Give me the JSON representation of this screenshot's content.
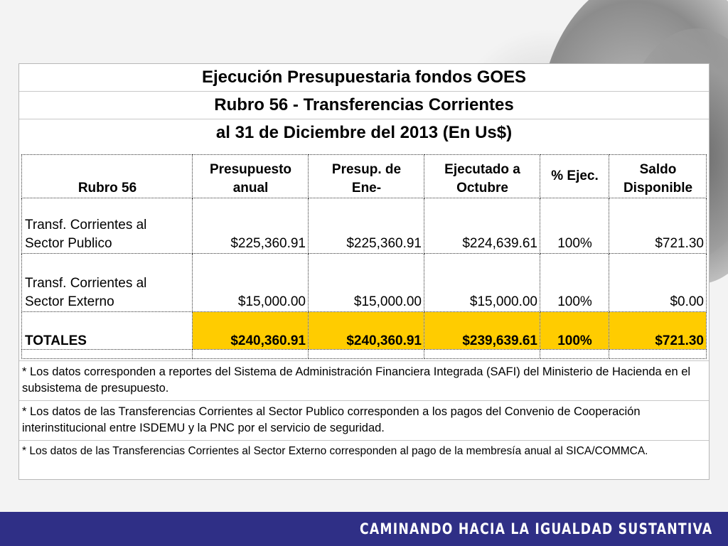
{
  "title": {
    "line1": "Ejecución Presupuestaria fondos GOES",
    "line2": "Rubro 56 - Transferencias Corrientes",
    "line3": "al 31 de Diciembre  del 2013 (En Us$)"
  },
  "table": {
    "headers": {
      "rubro": "Rubro 56",
      "presupuesto_l1": "Presupuesto",
      "presupuesto_l2": "anual",
      "presup_l1": "Presup. de",
      "presup_l2": "Ene-",
      "ejecutado_l1": "Ejecutado a",
      "ejecutado_l2": "Octubre",
      "pct": "% Ejec.",
      "saldo_l1": "Saldo",
      "saldo_l2": "Disponible"
    },
    "rows": [
      {
        "label_l1": "Transf. Corrientes al",
        "label_l2": "Sector Publico",
        "presupuesto": "$225,360.91",
        "presup": "$225,360.91",
        "ejecutado": "$224,639.61",
        "pct": "100%",
        "saldo": "$721.30"
      },
      {
        "label_l1": "Transf. Corrientes al",
        "label_l2": "Sector Externo",
        "presupuesto": "$15,000.00",
        "presup": "$15,000.00",
        "ejecutado": "$15,000.00",
        "pct": "100%",
        "saldo": "$0.00"
      }
    ],
    "totals": {
      "label": "TOTALES",
      "presupuesto": "$240,360.91",
      "presup": "$240,360.91",
      "ejecutado": "$239,639.61",
      "pct": "100%",
      "saldo": "$721.30"
    },
    "highlight_color": "#ffcc00"
  },
  "notes": [
    "*  Los datos corresponden a reportes del Sistema de Administración Financiera Integrada (SAFI) del Ministerio de Hacienda en el subsistema de presupuesto.",
    "*  Los datos de las Transferencias Corrientes al Sector Publico corresponden a los pagos del Convenio de Cooperación interinstitucional entre ISDEMU y la PNC por el servicio de seguridad.",
    "*  Los datos de las Transferencias Corrientes al Sector Externo corresponden al pago de la membresía anual al SICA/COMMCA."
  ],
  "footer": {
    "text": "CAMINANDO HACIA LA IGUALDAD SUSTANTIVA",
    "bar_color": "#2f2f86"
  }
}
